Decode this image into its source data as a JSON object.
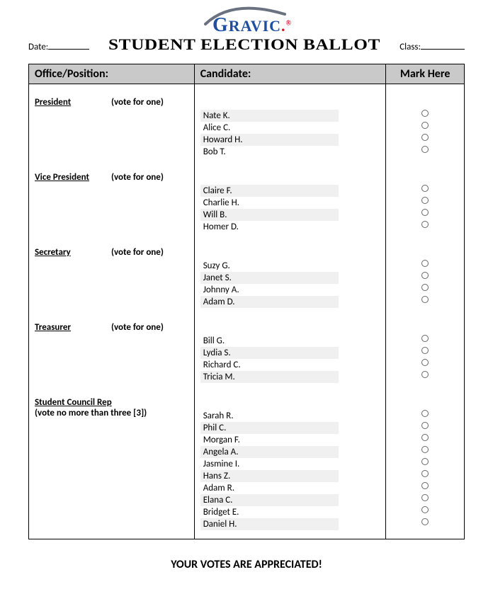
{
  "logo": {
    "text_main": "RAVIC",
    "g": "G"
  },
  "header": {
    "date_label": "Date:",
    "title": "STUDENT ELECTION BALLOT",
    "class_label": "Class:"
  },
  "table": {
    "col_office": "Office/Position:",
    "col_candidate": "Candidate:",
    "col_mark": "Mark Here"
  },
  "sections": [
    {
      "office": "President",
      "note": "(vote for one)",
      "two_line": false,
      "candidates": [
        "Nate K.",
        "Alice C.",
        "Howard H.",
        "Bob T."
      ],
      "shade_start": 1
    },
    {
      "office": "Vice President",
      "note": "(vote for one)",
      "two_line": false,
      "candidates": [
        "Claire F.",
        "Charlie H.",
        "Will B.",
        "Homer D."
      ],
      "shade_start": 1
    },
    {
      "office": "Secretary",
      "note": "(vote for one)",
      "two_line": false,
      "candidates": [
        "Suzy G.",
        "Janet S.",
        "Johnny A.",
        "Adam D."
      ],
      "shade_start": 0
    },
    {
      "office": "Treasurer",
      "note": "(vote for one)",
      "two_line": false,
      "candidates": [
        "Bill G.",
        "Lydia S.",
        "Richard C.",
        "Tricia M."
      ],
      "shade_start": 0
    },
    {
      "office": "Student Council Rep",
      "note": "(vote no more than three [3])",
      "two_line": true,
      "candidates": [
        "Sarah R.",
        "Phil C.",
        "Morgan F.",
        "Angela A.",
        "Jasmine I.",
        "Hans Z.",
        "Adam R.",
        "Elana C.",
        "Bridget E.",
        "Daniel H."
      ],
      "shade_start": 0
    }
  ],
  "footer": "YOUR VOTES ARE APPRECIATED!"
}
